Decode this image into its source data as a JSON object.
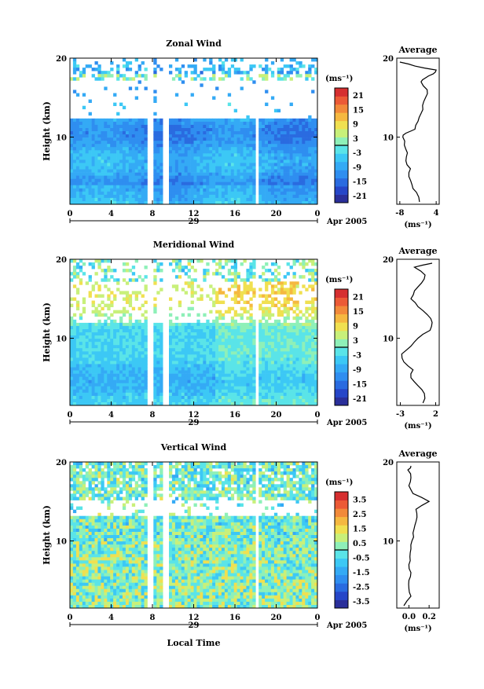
{
  "figure": {
    "date_label": "Apr 2005",
    "xlabel": "Local Time",
    "day_label": "29",
    "x_ticks": [
      "0",
      "4",
      "8",
      "12",
      "16",
      "20",
      "0"
    ],
    "y_ticks": [
      "10",
      "20"
    ],
    "ylabel": "Height (km)",
    "unit_label": "(ms⁻¹)",
    "avg_unit_label": "(ms⁻¹)"
  },
  "colors": {
    "colormap": [
      "#2a2f9a",
      "#2646c8",
      "#2a6be0",
      "#2f8ef0",
      "#34aaf5",
      "#3cc8f5",
      "#5ae4e8",
      "#8ef0b8",
      "#c8f07a",
      "#f0e050",
      "#f5b840",
      "#f28a3a",
      "#ec5a36",
      "#d62f30"
    ]
  },
  "chart_data": [
    {
      "type": "heatmap",
      "title": "Zonal Wind",
      "xlabel": "Local Time",
      "ylabel": "Height (km)",
      "x_range": [
        0,
        24
      ],
      "y_range": [
        1.5,
        20
      ],
      "colorbar_ticks": [
        "21",
        "15",
        "9",
        "3",
        "-3",
        "-9",
        "-15",
        "-21"
      ],
      "colorbar_range": [
        -24,
        24
      ],
      "data_gaps_hours": [
        [
          7.6,
          8.0
        ],
        [
          8.9,
          9.6
        ],
        [
          18.0,
          18.3
        ]
      ],
      "average_profile": {
        "title": "Average",
        "xticks": [
          "-8",
          "4"
        ],
        "xlim": [
          -9,
          5
        ],
        "yticks": [
          "10",
          "20"
        ],
        "height_km": [
          1.8,
          3,
          4,
          5,
          6,
          7,
          8,
          9,
          10,
          10.5,
          11,
          12,
          13,
          14,
          15,
          16,
          17,
          17.5,
          18,
          18.5,
          19,
          19.5
        ],
        "values": [
          -1.5,
          -2.5,
          -4,
          -5,
          -4.5,
          -6,
          -5.5,
          -6.5,
          -7,
          -6,
          -3,
          -2,
          -1,
          -0.5,
          0.5,
          1,
          -1,
          0.5,
          3,
          4,
          -3,
          -8
        ]
      }
    },
    {
      "type": "heatmap",
      "title": "Meridional Wind",
      "xlabel": "Local Time",
      "ylabel": "Height (km)",
      "x_range": [
        0,
        24
      ],
      "y_range": [
        1.5,
        20
      ],
      "colorbar_ticks": [
        "21",
        "15",
        "9",
        "3",
        "-3",
        "-9",
        "-15",
        "-21"
      ],
      "colorbar_range": [
        -24,
        24
      ],
      "data_gaps_hours": [
        [
          7.6,
          8.0
        ],
        [
          8.9,
          9.6
        ],
        [
          18.0,
          18.3
        ]
      ],
      "average_profile": {
        "title": "Average",
        "xticks": [
          "-3",
          "2"
        ],
        "xlim": [
          -3.5,
          2.5
        ],
        "yticks": [
          "10",
          "20"
        ],
        "height_km": [
          1.8,
          3,
          4,
          5,
          6,
          7,
          8,
          9,
          10,
          11,
          12,
          13,
          14,
          15,
          16,
          17,
          18,
          19,
          19.5
        ],
        "values": [
          0.2,
          0.4,
          -0.5,
          -1.5,
          -1.2,
          -2.5,
          -2.8,
          -1.5,
          -0.5,
          1.2,
          1.5,
          0.8,
          -0.5,
          -1.5,
          -1,
          0,
          0.5,
          -1,
          1.5
        ]
      }
    },
    {
      "type": "heatmap",
      "title": "Vertical Wind",
      "xlabel": "Local Time",
      "ylabel": "Height (km)",
      "x_range": [
        0,
        24
      ],
      "y_range": [
        1.5,
        20
      ],
      "colorbar_ticks": [
        "3.5",
        "2.5",
        "1.5",
        "0.5",
        "-0.5",
        "-1.5",
        "-2.5",
        "-3.5"
      ],
      "colorbar_range": [
        -4,
        4
      ],
      "data_gaps_hours": [
        [
          7.6,
          8.0
        ],
        [
          8.9,
          9.6
        ],
        [
          18.0,
          18.3
        ]
      ],
      "average_profile": {
        "title": "Average",
        "xticks": [
          "0.0",
          "0.2"
        ],
        "xlim": [
          -0.12,
          0.3
        ],
        "yticks": [
          "10",
          "20"
        ],
        "height_km": [
          1.8,
          3,
          4,
          5,
          6,
          7,
          8,
          9,
          10,
          11,
          12,
          13,
          14,
          15,
          16,
          17,
          18,
          19,
          19.5
        ],
        "values": [
          -0.05,
          0.02,
          0.0,
          0.0,
          0.02,
          0.0,
          0.01,
          0.02,
          0.03,
          0.04,
          0.06,
          0.08,
          0.07,
          0.2,
          0.04,
          0.0,
          0.02,
          -0.01,
          0.02
        ]
      }
    }
  ]
}
